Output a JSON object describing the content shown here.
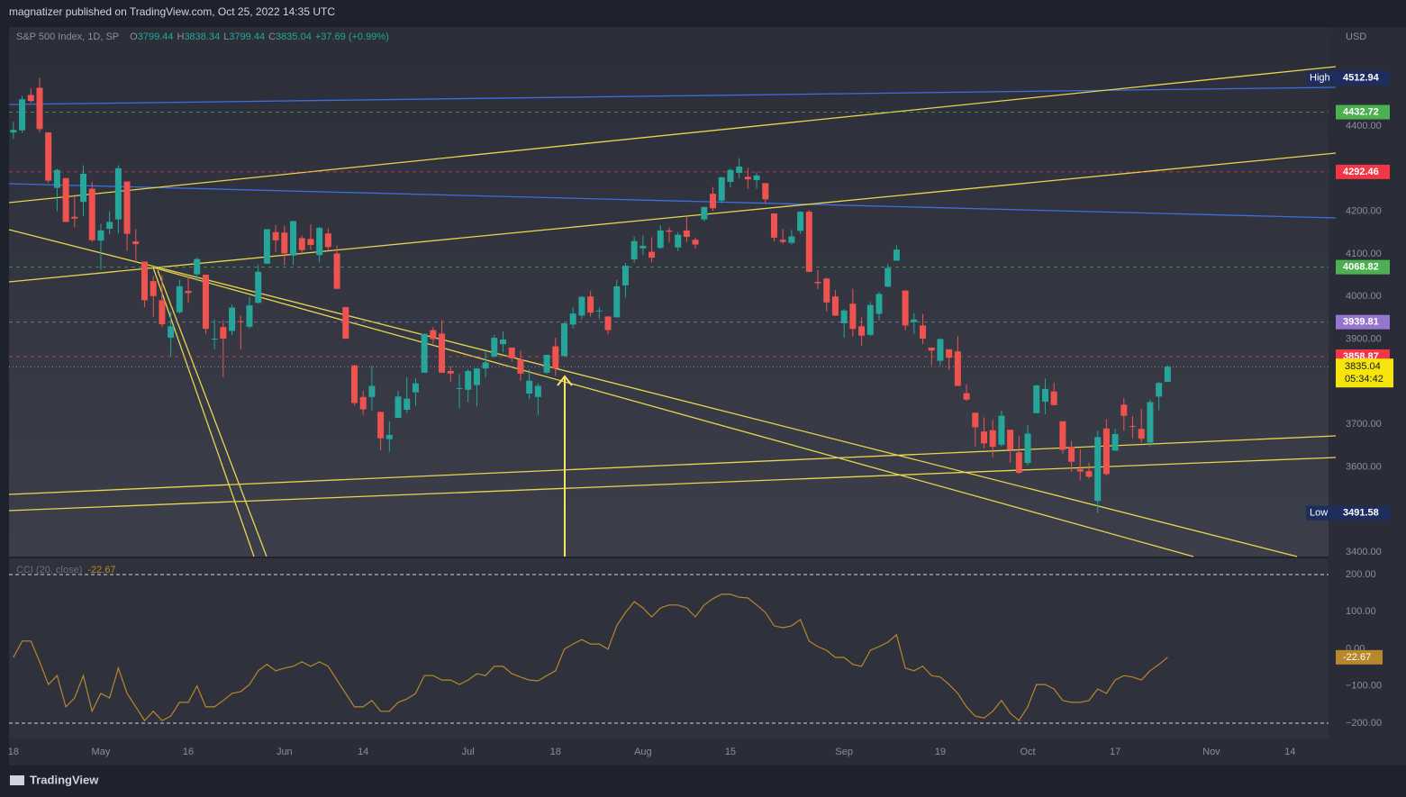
{
  "header": {
    "publisher": "magnatizer published on TradingView.com, Oct 25, 2022 14:35 UTC",
    "brand": "TradingView"
  },
  "chart_data": [
    {
      "type": "candlestick",
      "symbol": "S&P 500 Index, 1D, SP",
      "ohlc_letters": [
        "O",
        "H",
        "L",
        "C"
      ],
      "change": "+37.69 (+0.99%)",
      "currency": "USD",
      "countdown": "05:34:42",
      "up_color": "#26a69a",
      "down_color": "#ef5350",
      "ylim": [
        3389.4,
        4632.6
      ],
      "yticks": [
        {
          "value": 4400,
          "label": "4400.00"
        },
        {
          "value": 4200,
          "label": "4200.00"
        },
        {
          "value": 4100,
          "label": "4100.00"
        },
        {
          "value": 4000,
          "label": "4000.00"
        },
        {
          "value": 3900,
          "label": "3900.00"
        },
        {
          "value": 3700,
          "label": "3700.00"
        },
        {
          "value": 3600,
          "label": "3600.00"
        },
        {
          "value": 3400,
          "label": "3400.00"
        }
      ],
      "xlim": [
        -0.5,
        150.4
      ],
      "xticks": [
        {
          "value": 0,
          "label": "18"
        },
        {
          "value": 10,
          "label": "May"
        },
        {
          "value": 20,
          "label": "16"
        },
        {
          "value": 31,
          "label": "Jun"
        },
        {
          "value": 40,
          "label": "14"
        },
        {
          "value": 52,
          "label": "Jul"
        },
        {
          "value": 62,
          "label": "18"
        },
        {
          "value": 72,
          "label": "Aug"
        },
        {
          "value": 82,
          "label": "15"
        },
        {
          "value": 95,
          "label": "Sep"
        },
        {
          "value": 106,
          "label": "19"
        },
        {
          "value": 116,
          "label": "Oct"
        },
        {
          "value": 126,
          "label": "17"
        },
        {
          "value": 137,
          "label": "Nov"
        },
        {
          "value": 146,
          "label": "14"
        }
      ],
      "levels": [
        {
          "value": 4512.94,
          "tag": "High",
          "color": "#1c2d5e"
        },
        {
          "value": 4432.72,
          "color": "#4caf50"
        },
        {
          "value": 4292.46,
          "color": "#f23645"
        },
        {
          "value": 4068.82,
          "color": "#4caf50"
        },
        {
          "value": 3939.81,
          "color": "#9575cd"
        },
        {
          "value": 3858.87,
          "color": "#f23645"
        },
        {
          "value": 3491.58,
          "tag": "Low",
          "color": "#1c2d5e"
        }
      ],
      "candles": [
        [
          4385,
          4410,
          4370,
          4391
        ],
        [
          4390,
          4471,
          4384,
          4463
        ],
        [
          4473,
          4489,
          4455,
          4459
        ],
        [
          4490,
          4513,
          4385,
          4393
        ],
        [
          4385,
          4386,
          4267,
          4272
        ],
        [
          4255,
          4300,
          4200,
          4297
        ],
        [
          4278,
          4278,
          4175,
          4175
        ],
        [
          4187,
          4240,
          4162,
          4183
        ],
        [
          4222,
          4308,
          4188,
          4288
        ],
        [
          4253,
          4269,
          4128,
          4132
        ],
        [
          4131,
          4170,
          4063,
          4155
        ],
        [
          4159,
          4200,
          4146,
          4175
        ],
        [
          4181,
          4308,
          4148,
          4301
        ],
        [
          4270,
          4270,
          4107,
          4147
        ],
        [
          4129,
          4158,
          4081,
          4123
        ],
        [
          4082,
          4082,
          3975,
          3991
        ],
        [
          4036,
          4048,
          3952,
          4001
        ],
        [
          3991,
          4050,
          3928,
          3935
        ],
        [
          3903,
          3964,
          3859,
          3930
        ],
        [
          3963,
          4039,
          3960,
          4024
        ],
        [
          4013,
          4047,
          3985,
          4008
        ],
        [
          4052,
          4091,
          4037,
          4088
        ],
        [
          4051,
          4051,
          3912,
          3924
        ],
        [
          3900,
          3946,
          3876,
          3901
        ],
        [
          3928,
          3944,
          3810,
          3901
        ],
        [
          3919,
          3981,
          3909,
          3974
        ],
        [
          3942,
          3955,
          3875,
          3941
        ],
        [
          3929,
          3999,
          3925,
          3979
        ],
        [
          3985,
          4075,
          3984,
          4058
        ],
        [
          4077,
          4158,
          4077,
          4158
        ],
        [
          4151,
          4168,
          4104,
          4132
        ],
        [
          4150,
          4166,
          4073,
          4101
        ],
        [
          4096,
          4177,
          4074,
          4177
        ],
        [
          4137,
          4143,
          4098,
          4109
        ],
        [
          4135,
          4169,
          4110,
          4121
        ],
        [
          4097,
          4164,
          4080,
          4161
        ],
        [
          4148,
          4160,
          4107,
          4116
        ],
        [
          4101,
          4120,
          4017,
          4018
        ],
        [
          3975,
          3975,
          3900,
          3901
        ],
        [
          3838,
          3839,
          3744,
          3750
        ],
        [
          3764,
          3779,
          3722,
          3735
        ],
        [
          3764,
          3838,
          3733,
          3790
        ],
        [
          3729,
          3729,
          3639,
          3667
        ],
        [
          3665,
          3707,
          3636,
          3675
        ],
        [
          3715,
          3779,
          3715,
          3765
        ],
        [
          3734,
          3810,
          3727,
          3760
        ],
        [
          3775,
          3808,
          3743,
          3796
        ],
        [
          3821,
          3913,
          3821,
          3912
        ],
        [
          3921,
          3928,
          3889,
          3900
        ],
        [
          3913,
          3945,
          3820,
          3821
        ],
        [
          3825,
          3836,
          3799,
          3819
        ],
        [
          3785,
          3818,
          3738,
          3785
        ],
        [
          3781,
          3829,
          3752,
          3825
        ],
        [
          3792,
          3832,
          3742,
          3831
        ],
        [
          3831,
          3870,
          3810,
          3845
        ],
        [
          3859,
          3910,
          3858,
          3903
        ],
        [
          3888,
          3918,
          3869,
          3899
        ],
        [
          3880,
          3880,
          3847,
          3855
        ],
        [
          3852,
          3873,
          3802,
          3819
        ],
        [
          3772,
          3829,
          3759,
          3802
        ],
        [
          3764,
          3796,
          3722,
          3790
        ],
        [
          3821,
          3863,
          3818,
          3863
        ],
        [
          3883,
          3903,
          3814,
          3831
        ],
        [
          3860,
          3939,
          3860,
          3937
        ],
        [
          3934,
          3975,
          3925,
          3960
        ],
        [
          3955,
          4001,
          3945,
          3999
        ],
        [
          4000,
          4013,
          3953,
          3962
        ],
        [
          3966,
          3975,
          3947,
          3967
        ],
        [
          3953,
          3954,
          3911,
          3921
        ],
        [
          3951,
          4039,
          3951,
          4024
        ],
        [
          4026,
          4079,
          3998,
          4072
        ],
        [
          4087,
          4141,
          4079,
          4130
        ],
        [
          4113,
          4144,
          4097,
          4119
        ],
        [
          4105,
          4139,
          4080,
          4091
        ],
        [
          4114,
          4167,
          4112,
          4155
        ],
        [
          4155,
          4162,
          4127,
          4152
        ],
        [
          4115,
          4151,
          4107,
          4145
        ],
        [
          4155,
          4186,
          4128,
          4140
        ],
        [
          4133,
          4138,
          4112,
          4122
        ],
        [
          4181,
          4211,
          4176,
          4210
        ],
        [
          4241,
          4257,
          4201,
          4207
        ],
        [
          4225,
          4280,
          4219,
          4280
        ],
        [
          4269,
          4301,
          4256,
          4297
        ],
        [
          4290,
          4325,
          4277,
          4305
        ],
        [
          4281,
          4302,
          4253,
          4275
        ],
        [
          4273,
          4292,
          4253,
          4284
        ],
        [
          4266,
          4266,
          4218,
          4228
        ],
        [
          4195,
          4195,
          4129,
          4138
        ],
        [
          4133,
          4159,
          4124,
          4128
        ],
        [
          4126,
          4156,
          4122,
          4141
        ],
        [
          4154,
          4200,
          4147,
          4199
        ],
        [
          4199,
          4203,
          4057,
          4058
        ],
        [
          4034,
          4062,
          4017,
          4031
        ],
        [
          4042,
          4044,
          3965,
          3986
        ],
        [
          4000,
          4015,
          3954,
          3955
        ],
        [
          3937,
          3970,
          3903,
          3967
        ],
        [
          3983,
          4018,
          3906,
          3924
        ],
        [
          3930,
          3951,
          3885,
          3908
        ],
        [
          3910,
          3987,
          3907,
          3980
        ],
        [
          3959,
          4011,
          3944,
          4006
        ],
        [
          4023,
          4076,
          4022,
          4067
        ],
        [
          4084,
          4120,
          4084,
          4110
        ],
        [
          4014,
          4014,
          3921,
          3932
        ],
        [
          3940,
          3961,
          3912,
          3946
        ],
        [
          3932,
          3959,
          3888,
          3901
        ],
        [
          3880,
          3880,
          3838,
          3873
        ],
        [
          3849,
          3902,
          3838,
          3900
        ],
        [
          3876,
          3876,
          3828,
          3856
        ],
        [
          3871,
          3907,
          3790,
          3790
        ],
        [
          3773,
          3793,
          3755,
          3758
        ],
        [
          3727,
          3727,
          3647,
          3693
        ],
        [
          3683,
          3716,
          3644,
          3655
        ],
        [
          3686,
          3710,
          3623,
          3647
        ],
        [
          3652,
          3733,
          3648,
          3720
        ],
        [
          3687,
          3687,
          3610,
          3640
        ],
        [
          3634,
          3672,
          3584,
          3586
        ],
        [
          3609,
          3698,
          3604,
          3678
        ],
        [
          3726,
          3793,
          3726,
          3791
        ],
        [
          3753,
          3807,
          3723,
          3783
        ],
        [
          3777,
          3798,
          3745,
          3745
        ],
        [
          3707,
          3707,
          3631,
          3640
        ],
        [
          3647,
          3661,
          3588,
          3612
        ],
        [
          3595,
          3641,
          3569,
          3589
        ],
        [
          3590,
          3610,
          3573,
          3577
        ],
        [
          3520,
          3685,
          3492,
          3670
        ],
        [
          3690,
          3712,
          3579,
          3583
        ],
        [
          3638,
          3689,
          3638,
          3677
        ],
        [
          3746,
          3762,
          3685,
          3720
        ],
        [
          3696,
          3719,
          3667,
          3695
        ],
        [
          3689,
          3736,
          3657,
          3666
        ],
        [
          3657,
          3758,
          3648,
          3752
        ],
        [
          3765,
          3800,
          3733,
          3797
        ],
        [
          3799.44,
          3838.34,
          3799.44,
          3835.04
        ]
      ]
    },
    {
      "type": "line",
      "name": "CCI (20, close)",
      "color": "#b8862b",
      "ylim": [
        -241.2,
        243.6
      ],
      "yticks": [
        {
          "value": 200,
          "label": "200.00"
        },
        {
          "value": 100,
          "label": "100.00"
        },
        {
          "value": 0,
          "label": "0.00"
        },
        {
          "value": -100,
          "label": "−100.00"
        },
        {
          "value": -200,
          "label": "−200.00"
        }
      ],
      "bands": [
        200,
        -200
      ],
      "values": [
        -23,
        21,
        21,
        -35,
        -96,
        -72,
        -156,
        -132,
        -72,
        -168,
        -120,
        -132,
        -52,
        -120,
        -156,
        -193,
        -168,
        -193,
        -181,
        -144,
        -144,
        -100,
        -156,
        -156,
        -139,
        -120,
        -115,
        -96,
        -59,
        -42,
        -59,
        -52,
        -47,
        -35,
        -47,
        -35,
        -47,
        -84,
        -120,
        -156,
        -156,
        -139,
        -168,
        -168,
        -144,
        -135,
        -120,
        -72,
        -72,
        -84,
        -84,
        -96,
        -84,
        -67,
        -72,
        -47,
        -47,
        -67,
        -76,
        -84,
        -86,
        -72,
        -59,
        -1,
        13,
        25,
        13,
        13,
        -1,
        62,
        98,
        127,
        110,
        86,
        110,
        118,
        118,
        110,
        86,
        118,
        135,
        147,
        147,
        139,
        137,
        118,
        98,
        62,
        57,
        62,
        79,
        21,
        6,
        -4,
        -23,
        -23,
        -42,
        -47,
        -4,
        6,
        18,
        38,
        -52,
        -59,
        -47,
        -72,
        -76,
        -96,
        -120,
        -156,
        -181,
        -186,
        -168,
        -139,
        -173,
        -193,
        -156,
        -96,
        -96,
        -108,
        -139,
        -144,
        -144,
        -139,
        -108,
        -120,
        -84,
        -72,
        -76,
        -84,
        -59,
        -42,
        -22.67
      ]
    }
  ]
}
